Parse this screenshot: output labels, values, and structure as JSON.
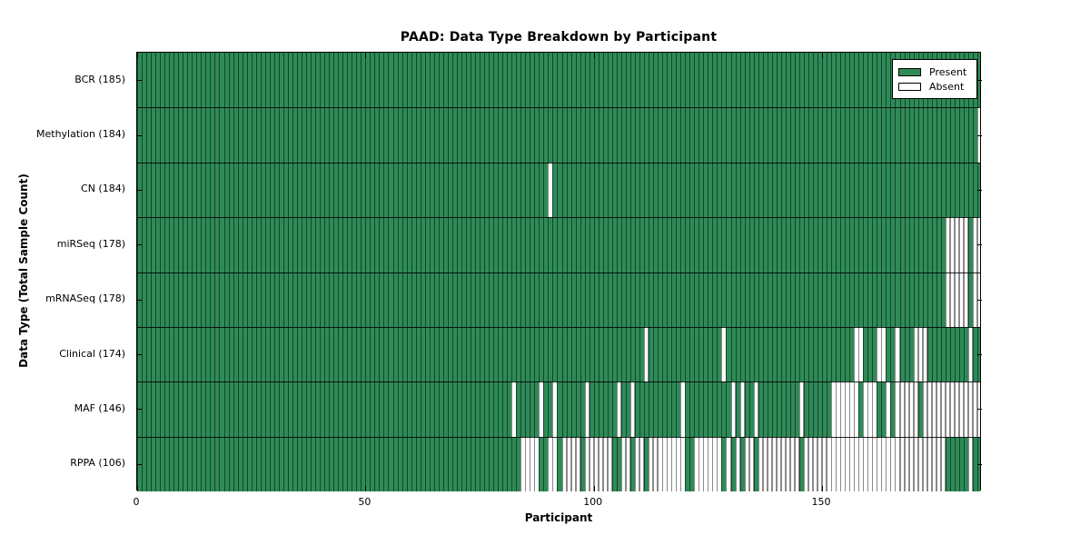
{
  "figure": {
    "background": "#ffffff"
  },
  "chart_data": {
    "type": "heatmap",
    "title": "PAAD: Data Type Breakdown by Participant",
    "xlabel": "Participant",
    "ylabel": "Data Type (Total Sample Count)",
    "x_ticks": [
      0,
      50,
      100,
      150
    ],
    "x_range": [
      0,
      185
    ],
    "n_participants": 185,
    "grid": false,
    "legend_position": "upper right",
    "legend": [
      {
        "label": "Present",
        "color": "#2E8B57"
      },
      {
        "label": "Absent",
        "color": "#FFFFFF"
      }
    ],
    "colors": {
      "present": "#2E8B57",
      "absent": "#FFFFFF",
      "edge": "#000000",
      "absent_edge": "#8a8a8a"
    },
    "rows": [
      {
        "label": "BCR (185)",
        "data_type": "BCR",
        "total": 185,
        "absent": []
      },
      {
        "label": "Methylation (184)",
        "data_type": "Methylation",
        "total": 184,
        "absent": [
          184
        ]
      },
      {
        "label": "CN (184)",
        "data_type": "CN",
        "total": 184,
        "absent": [
          90
        ]
      },
      {
        "label": "miRSeq (178)",
        "data_type": "miRSeq",
        "total": 178,
        "absent": [
          177,
          178,
          179,
          180,
          181,
          183,
          184
        ]
      },
      {
        "label": "mRNASeq (178)",
        "data_type": "mRNASeq",
        "total": 178,
        "absent": [
          177,
          178,
          179,
          180,
          181,
          183,
          184
        ]
      },
      {
        "label": "Clinical (174)",
        "data_type": "Clinical",
        "total": 174,
        "absent": [
          111,
          128,
          157,
          158,
          162,
          163,
          166,
          170,
          171,
          172,
          182
        ]
      },
      {
        "label": "MAF (146)",
        "data_type": "MAF",
        "total": 146,
        "absent": [
          82,
          88,
          91,
          98,
          105,
          108,
          119,
          130,
          132,
          135,
          145,
          152,
          153,
          154,
          155,
          156,
          157,
          159,
          160,
          161,
          164,
          166,
          167,
          168,
          169,
          170,
          172,
          173,
          174,
          175,
          176,
          177,
          178,
          179,
          180,
          181,
          182,
          183,
          184
        ]
      },
      {
        "label": "RPPA (106)",
        "data_type": "RPPA",
        "total": 106,
        "absent": [
          84,
          85,
          86,
          87,
          90,
          91,
          93,
          94,
          95,
          96,
          98,
          99,
          100,
          101,
          102,
          103,
          106,
          107,
          109,
          110,
          112,
          113,
          114,
          115,
          116,
          117,
          118,
          119,
          122,
          123,
          124,
          125,
          126,
          127,
          129,
          131,
          133,
          134,
          136,
          137,
          138,
          139,
          140,
          141,
          142,
          143,
          144,
          146,
          147,
          148,
          149,
          150,
          151,
          152,
          153,
          154,
          155,
          156,
          157,
          158,
          159,
          160,
          161,
          162,
          163,
          164,
          165,
          166,
          167,
          168,
          169,
          170,
          171,
          172,
          173,
          174,
          175,
          176,
          182
        ]
      }
    ]
  }
}
